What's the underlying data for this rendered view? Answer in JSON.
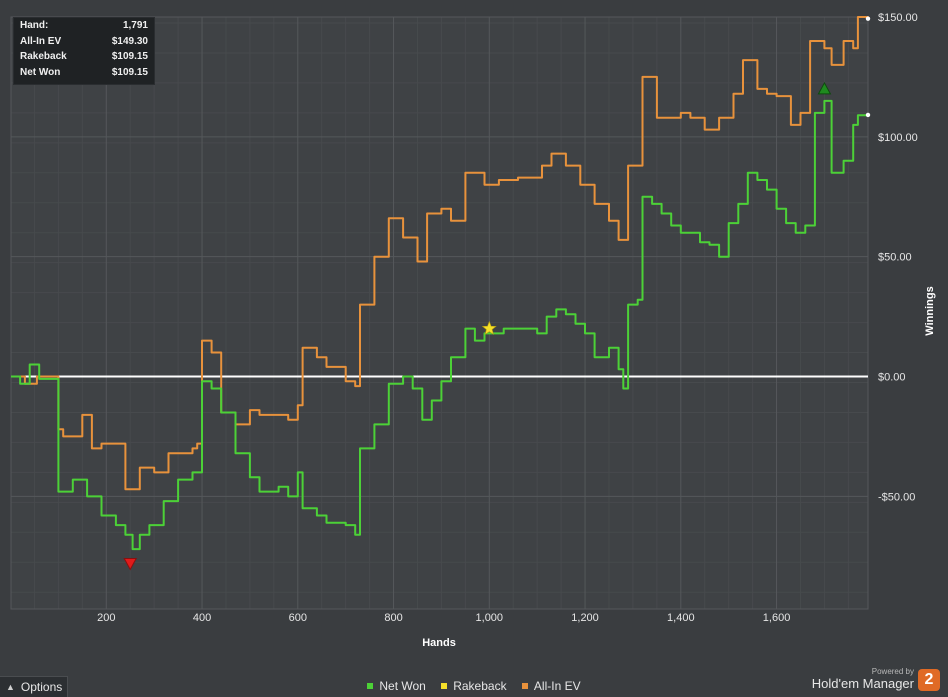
{
  "stats": {
    "rows": [
      {
        "label": "Hand:",
        "value": "1,791"
      },
      {
        "label": "All-In EV",
        "value": "$149.30"
      },
      {
        "label": "Rakeback",
        "value": "$109.15"
      },
      {
        "label": "Net Won",
        "value": "$109.15"
      }
    ]
  },
  "legend": {
    "items": [
      {
        "label": "Net Won",
        "color": "#4cd137"
      },
      {
        "label": "Rakeback",
        "color": "#f5e02a"
      },
      {
        "label": "All-In EV",
        "color": "#e8923c"
      }
    ]
  },
  "options": {
    "label": "Options"
  },
  "brand": {
    "powered": "Powered by",
    "name": "Hold'em Manager",
    "logo": "2"
  },
  "chart_data": {
    "type": "line",
    "xlabel": "Hands",
    "ylabel": "Winnings",
    "xlim": [
      1,
      1791
    ],
    "ylim": [
      -97,
      150
    ],
    "x_ticks": [
      200,
      400,
      600,
      800,
      1000,
      1200,
      1400,
      1600
    ],
    "x_tick_labels": [
      "200",
      "400",
      "600",
      "800",
      "1,000",
      "1,200",
      "1,400",
      "1,600"
    ],
    "y_ticks": [
      150,
      100,
      50,
      0,
      -50
    ],
    "y_tick_labels": [
      "$150.00",
      "$100.00",
      "$50.00",
      "$0.00",
      "-$50.00"
    ],
    "grid": true,
    "legend_position": "bottom",
    "series": [
      {
        "name": "All-In EV",
        "color": "#e8923c",
        "points": [
          [
            1,
            0
          ],
          [
            30,
            -3
          ],
          [
            55,
            0
          ],
          [
            100,
            -22
          ],
          [
            110,
            -25
          ],
          [
            150,
            -16
          ],
          [
            170,
            -30
          ],
          [
            190,
            -28
          ],
          [
            240,
            -47
          ],
          [
            270,
            -38
          ],
          [
            300,
            -40
          ],
          [
            330,
            -32
          ],
          [
            350,
            -32
          ],
          [
            380,
            -30
          ],
          [
            390,
            -28
          ],
          [
            400,
            15
          ],
          [
            420,
            10
          ],
          [
            440,
            -15
          ],
          [
            470,
            -20
          ],
          [
            500,
            -14
          ],
          [
            520,
            -16
          ],
          [
            560,
            -16
          ],
          [
            580,
            -18
          ],
          [
            600,
            -12
          ],
          [
            610,
            12
          ],
          [
            640,
            8
          ],
          [
            660,
            4
          ],
          [
            700,
            -2
          ],
          [
            720,
            -4
          ],
          [
            730,
            30
          ],
          [
            760,
            50
          ],
          [
            790,
            66
          ],
          [
            820,
            58
          ],
          [
            850,
            48
          ],
          [
            870,
            68
          ],
          [
            900,
            70
          ],
          [
            920,
            65
          ],
          [
            950,
            85
          ],
          [
            990,
            80
          ],
          [
            1020,
            82
          ],
          [
            1060,
            83
          ],
          [
            1090,
            83
          ],
          [
            1110,
            88
          ],
          [
            1130,
            93
          ],
          [
            1160,
            88
          ],
          [
            1190,
            80
          ],
          [
            1220,
            72
          ],
          [
            1250,
            65
          ],
          [
            1270,
            57
          ],
          [
            1290,
            88
          ],
          [
            1320,
            125
          ],
          [
            1350,
            108
          ],
          [
            1380,
            108
          ],
          [
            1400,
            110
          ],
          [
            1420,
            108
          ],
          [
            1450,
            103
          ],
          [
            1480,
            108
          ],
          [
            1510,
            118
          ],
          [
            1530,
            132
          ],
          [
            1560,
            120
          ],
          [
            1580,
            118
          ],
          [
            1600,
            117
          ],
          [
            1630,
            105
          ],
          [
            1650,
            110
          ],
          [
            1670,
            140
          ],
          [
            1700,
            137
          ],
          [
            1715,
            130
          ],
          [
            1740,
            140
          ],
          [
            1760,
            137
          ],
          [
            1770,
            150
          ],
          [
            1791,
            149.3
          ]
        ]
      },
      {
        "name": "Net Won",
        "color": "#4cd137",
        "points": [
          [
            1,
            0
          ],
          [
            20,
            -3
          ],
          [
            40,
            5
          ],
          [
            60,
            -1
          ],
          [
            100,
            -48
          ],
          [
            130,
            -43
          ],
          [
            160,
            -50
          ],
          [
            190,
            -58
          ],
          [
            220,
            -62
          ],
          [
            240,
            -66
          ],
          [
            255,
            -72
          ],
          [
            270,
            -66
          ],
          [
            290,
            -62
          ],
          [
            320,
            -52
          ],
          [
            350,
            -43
          ],
          [
            380,
            -40
          ],
          [
            400,
            -2
          ],
          [
            420,
            -5
          ],
          [
            440,
            -15
          ],
          [
            470,
            -32
          ],
          [
            500,
            -42
          ],
          [
            520,
            -48
          ],
          [
            560,
            -46
          ],
          [
            580,
            -50
          ],
          [
            600,
            -40
          ],
          [
            610,
            -55
          ],
          [
            640,
            -58
          ],
          [
            660,
            -61
          ],
          [
            700,
            -62
          ],
          [
            720,
            -66
          ],
          [
            730,
            -30
          ],
          [
            760,
            -20
          ],
          [
            790,
            -3
          ],
          [
            820,
            0
          ],
          [
            840,
            -5
          ],
          [
            860,
            -18
          ],
          [
            880,
            -10
          ],
          [
            900,
            -2
          ],
          [
            920,
            8
          ],
          [
            950,
            20
          ],
          [
            970,
            15
          ],
          [
            990,
            18
          ],
          [
            1010,
            18
          ],
          [
            1030,
            20
          ],
          [
            1060,
            20
          ],
          [
            1080,
            20
          ],
          [
            1100,
            18
          ],
          [
            1120,
            25
          ],
          [
            1140,
            28
          ],
          [
            1160,
            26
          ],
          [
            1180,
            22
          ],
          [
            1200,
            18
          ],
          [
            1220,
            8
          ],
          [
            1250,
            12
          ],
          [
            1270,
            3
          ],
          [
            1280,
            -5
          ],
          [
            1290,
            30
          ],
          [
            1310,
            32
          ],
          [
            1320,
            75
          ],
          [
            1340,
            72
          ],
          [
            1360,
            68
          ],
          [
            1380,
            63
          ],
          [
            1400,
            60
          ],
          [
            1420,
            60
          ],
          [
            1440,
            56
          ],
          [
            1460,
            55
          ],
          [
            1480,
            50
          ],
          [
            1500,
            64
          ],
          [
            1520,
            72
          ],
          [
            1540,
            85
          ],
          [
            1560,
            82
          ],
          [
            1580,
            78
          ],
          [
            1600,
            70
          ],
          [
            1620,
            64
          ],
          [
            1640,
            60
          ],
          [
            1660,
            63
          ],
          [
            1680,
            110
          ],
          [
            1700,
            115
          ],
          [
            1715,
            85
          ],
          [
            1740,
            90
          ],
          [
            1760,
            105
          ],
          [
            1770,
            109
          ],
          [
            1791,
            109.15
          ]
        ]
      }
    ],
    "markers": [
      {
        "type": "min",
        "x": 250,
        "y": -78,
        "color": "#e01b1b"
      },
      {
        "type": "star",
        "x": 1000,
        "y": 20,
        "color": "#f5e02a"
      },
      {
        "type": "max",
        "x": 1700,
        "y": 120,
        "color": "#1f8a1f"
      }
    ]
  }
}
